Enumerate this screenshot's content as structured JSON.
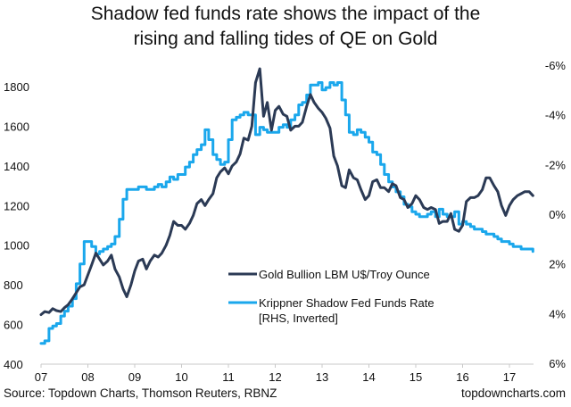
{
  "chart_data": {
    "type": "line",
    "title": "Shadow fed funds rate shows the impact of the rising and falling tides of QE on Gold",
    "title_lines": [
      "Shadow fed funds rate shows the impact of the",
      "rising and falling tides of QE on Gold"
    ],
    "xlabel": "",
    "ylabel_left": "",
    "ylabel_right": "",
    "x_ticks": [
      "07",
      "08",
      "09",
      "10",
      "11",
      "12",
      "13",
      "14",
      "15",
      "16",
      "17"
    ],
    "x_range": [
      2007.0,
      2017.5
    ],
    "y_left": {
      "ticks": [
        "400",
        "600",
        "800",
        "1000",
        "1200",
        "1400",
        "1600",
        "1800"
      ],
      "tick_values": [
        400,
        600,
        800,
        1000,
        1200,
        1400,
        1600,
        1800
      ],
      "range": [
        400,
        1800
      ]
    },
    "y_right": {
      "ticks": [
        "-6%",
        "-4%",
        "-2%",
        "0%",
        "2%",
        "4%",
        "6%"
      ],
      "tick_values": [
        -6,
        -4,
        -2,
        0,
        2,
        4,
        6
      ],
      "range": [
        -6,
        6
      ],
      "inverted": true
    },
    "grid": false,
    "legend_position": "center-right",
    "series": [
      {
        "name": "Gold Bullion LBM U$/Troy Ounce",
        "axis": "left",
        "color": "#2b3a55",
        "x": [
          2007.0,
          2007.08,
          2007.17,
          2007.25,
          2007.33,
          2007.42,
          2007.5,
          2007.58,
          2007.67,
          2007.75,
          2007.83,
          2007.92,
          2008.0,
          2008.08,
          2008.17,
          2008.25,
          2008.33,
          2008.42,
          2008.5,
          2008.58,
          2008.67,
          2008.75,
          2008.83,
          2008.92,
          2009.0,
          2009.08,
          2009.17,
          2009.25,
          2009.33,
          2009.42,
          2009.5,
          2009.58,
          2009.67,
          2009.75,
          2009.83,
          2009.92,
          2010.0,
          2010.08,
          2010.17,
          2010.25,
          2010.33,
          2010.42,
          2010.5,
          2010.58,
          2010.67,
          2010.75,
          2010.83,
          2010.92,
          2011.0,
          2011.08,
          2011.17,
          2011.25,
          2011.33,
          2011.42,
          2011.5,
          2011.58,
          2011.67,
          2011.75,
          2011.83,
          2011.92,
          2012.0,
          2012.08,
          2012.17,
          2012.25,
          2012.33,
          2012.42,
          2012.5,
          2012.58,
          2012.67,
          2012.75,
          2012.83,
          2012.92,
          2013.0,
          2013.08,
          2013.17,
          2013.25,
          2013.33,
          2013.42,
          2013.5,
          2013.58,
          2013.67,
          2013.75,
          2013.83,
          2013.92,
          2014.0,
          2014.08,
          2014.17,
          2014.25,
          2014.33,
          2014.42,
          2014.5,
          2014.58,
          2014.67,
          2014.75,
          2014.83,
          2014.92,
          2015.0,
          2015.08,
          2015.17,
          2015.25,
          2015.33,
          2015.42,
          2015.5,
          2015.58,
          2015.67,
          2015.75,
          2015.83,
          2015.92,
          2016.0,
          2016.08,
          2016.17,
          2016.25,
          2016.33,
          2016.42,
          2016.5,
          2016.58,
          2016.67,
          2016.75,
          2016.83,
          2016.92,
          2017.0,
          2017.08,
          2017.17,
          2017.25,
          2017.33,
          2017.42,
          2017.5
        ],
        "values": [
          650,
          665,
          660,
          680,
          670,
          665,
          685,
          700,
          730,
          760,
          790,
          800,
          850,
          900,
          960,
          930,
          900,
          920,
          950,
          880,
          840,
          780,
          740,
          800,
          870,
          920,
          930,
          880,
          920,
          950,
          940,
          960,
          1000,
          1050,
          1120,
          1100,
          1100,
          1080,
          1110,
          1150,
          1210,
          1230,
          1200,
          1230,
          1260,
          1340,
          1370,
          1390,
          1360,
          1400,
          1420,
          1460,
          1540,
          1530,
          1600,
          1820,
          1890,
          1650,
          1720,
          1580,
          1680,
          1700,
          1660,
          1650,
          1580,
          1600,
          1600,
          1620,
          1700,
          1760,
          1720,
          1690,
          1670,
          1640,
          1590,
          1450,
          1400,
          1300,
          1290,
          1380,
          1340,
          1330,
          1280,
          1230,
          1250,
          1320,
          1330,
          1290,
          1290,
          1270,
          1310,
          1300,
          1240,
          1230,
          1190,
          1210,
          1250,
          1230,
          1190,
          1180,
          1190,
          1180,
          1110,
          1120,
          1120,
          1160,
          1080,
          1070,
          1100,
          1220,
          1240,
          1240,
          1250,
          1280,
          1340,
          1340,
          1300,
          1270,
          1200,
          1150,
          1200,
          1230,
          1250,
          1260,
          1270,
          1270,
          1250
        ]
      },
      {
        "name": "Krippner Shadow Fed Funds Rate [RHS, Inverted]",
        "axis": "right",
        "color": "#1aa7ec",
        "x": [
          2007.0,
          2007.08,
          2007.17,
          2007.25,
          2007.33,
          2007.42,
          2007.5,
          2007.58,
          2007.67,
          2007.75,
          2007.83,
          2007.92,
          2008.0,
          2008.08,
          2008.17,
          2008.25,
          2008.33,
          2008.42,
          2008.5,
          2008.58,
          2008.67,
          2008.75,
          2008.83,
          2008.92,
          2009.0,
          2009.08,
          2009.17,
          2009.25,
          2009.33,
          2009.42,
          2009.5,
          2009.58,
          2009.67,
          2009.75,
          2009.83,
          2009.92,
          2010.0,
          2010.08,
          2010.17,
          2010.25,
          2010.33,
          2010.42,
          2010.5,
          2010.58,
          2010.67,
          2010.75,
          2010.83,
          2010.92,
          2011.0,
          2011.08,
          2011.17,
          2011.25,
          2011.33,
          2011.42,
          2011.5,
          2011.58,
          2011.67,
          2011.75,
          2011.83,
          2011.92,
          2012.0,
          2012.08,
          2012.17,
          2012.25,
          2012.33,
          2012.42,
          2012.5,
          2012.58,
          2012.67,
          2012.75,
          2012.83,
          2012.92,
          2013.0,
          2013.08,
          2013.17,
          2013.25,
          2013.33,
          2013.42,
          2013.5,
          2013.58,
          2013.67,
          2013.75,
          2013.83,
          2013.92,
          2014.0,
          2014.08,
          2014.17,
          2014.25,
          2014.33,
          2014.42,
          2014.5,
          2014.58,
          2014.67,
          2014.75,
          2014.83,
          2014.92,
          2015.0,
          2015.08,
          2015.17,
          2015.25,
          2015.33,
          2015.42,
          2015.5,
          2015.58,
          2015.67,
          2015.75,
          2015.83,
          2015.92,
          2016.0,
          2016.08,
          2016.17,
          2016.25,
          2016.33,
          2016.42,
          2016.5,
          2016.58,
          2016.67,
          2016.75,
          2016.83,
          2016.92,
          2017.0,
          2017.08,
          2017.17,
          2017.25,
          2017.33,
          2017.42,
          2017.5
        ],
        "values": [
          5.2,
          5.1,
          4.6,
          4.5,
          4.4,
          4.1,
          3.9,
          3.7,
          3.4,
          2.8,
          2.0,
          1.1,
          1.1,
          1.3,
          1.6,
          1.5,
          1.4,
          1.3,
          1.2,
          0.9,
          0.2,
          -0.6,
          -1.0,
          -1.0,
          -1.0,
          -1.1,
          -1.1,
          -1.0,
          -1.0,
          -1.1,
          -1.2,
          -1.1,
          -1.3,
          -1.5,
          -1.4,
          -1.6,
          -1.6,
          -1.9,
          -2.1,
          -2.4,
          -2.6,
          -2.8,
          -3.4,
          -3.0,
          -2.4,
          -2.2,
          -2.0,
          -2.1,
          -3.0,
          -3.8,
          -3.9,
          -4.0,
          -4.1,
          -4.0,
          -4.0,
          -3.2,
          -3.5,
          -3.4,
          -3.3,
          -3.3,
          -3.3,
          -3.5,
          -3.6,
          -3.5,
          -3.8,
          -4.0,
          -4.4,
          -4.5,
          -4.8,
          -5.2,
          -5.2,
          -5.3,
          -5.0,
          -5.1,
          -5.3,
          -5.2,
          -5.3,
          -4.6,
          -4.0,
          -3.3,
          -3.2,
          -3.4,
          -3.3,
          -3.1,
          -2.9,
          -2.5,
          -2.4,
          -2.0,
          -1.6,
          -1.3,
          -1.1,
          -0.9,
          -0.7,
          -0.4,
          -0.3,
          -0.1,
          0.0,
          0.1,
          0.1,
          0.0,
          -0.1,
          0.1,
          -0.2,
          0.0,
          0.1,
          0.1,
          -0.1,
          0.4,
          0.3,
          0.4,
          0.5,
          0.6,
          0.6,
          0.7,
          0.8,
          0.8,
          0.9,
          1.0,
          1.1,
          1.1,
          1.2,
          1.3,
          1.3,
          1.4,
          1.4,
          1.4,
          1.5
        ]
      }
    ]
  },
  "legend": {
    "items": [
      {
        "label_lines": [
          "Gold Bullion LBM U$/Troy Ounce"
        ],
        "color": "#2b3a55"
      },
      {
        "label_lines": [
          "Krippner Shadow Fed Funds Rate",
          "[RHS, Inverted]"
        ],
        "color": "#1aa7ec"
      }
    ]
  },
  "footer": {
    "source": "Source: Topdown Charts, Thomson Reuters, RBNZ",
    "site": "topdowncharts.com"
  }
}
